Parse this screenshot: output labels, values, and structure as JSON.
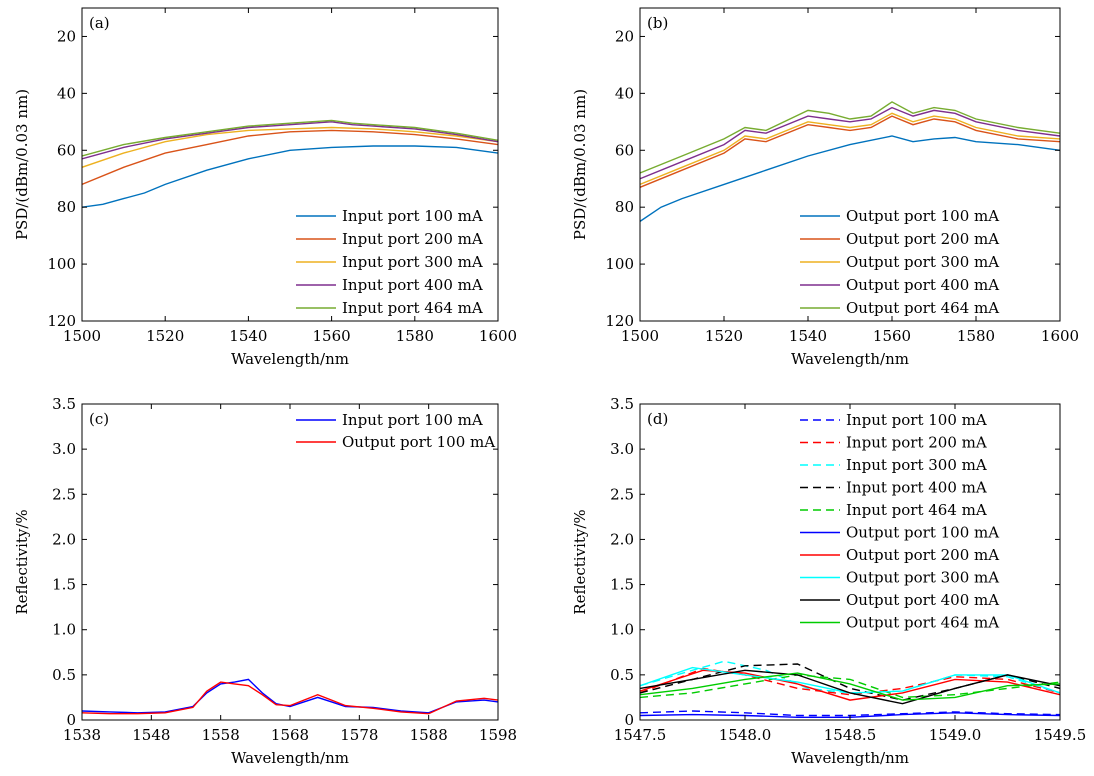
{
  "chart_data": [
    {
      "id": "a",
      "type": "line",
      "panel_label": "(a)",
      "xlabel": "Wavelength/nm",
      "ylabel": "PSD/(dBm/0.03 nm)",
      "xlim": [
        1500,
        1600
      ],
      "ylim": [
        120,
        10
      ],
      "y_inverted": true,
      "xticks": [
        1500,
        1520,
        1540,
        1560,
        1580,
        1600
      ],
      "yticks": [
        20,
        40,
        60,
        80,
        100,
        120
      ],
      "legend_position": "lower-right",
      "grid": false,
      "series": [
        {
          "name": "Input port 100 mA",
          "color": "#0072BD",
          "dash": "solid",
          "x": [
            1500,
            1505,
            1510,
            1515,
            1520,
            1530,
            1540,
            1550,
            1560,
            1570,
            1580,
            1590,
            1600
          ],
          "y": [
            80,
            79,
            77,
            75,
            72,
            67,
            63,
            60,
            59,
            58.5,
            58.5,
            59,
            61
          ]
        },
        {
          "name": "Input port 200 mA",
          "color": "#D95319",
          "dash": "solid",
          "x": [
            1500,
            1510,
            1520,
            1530,
            1540,
            1550,
            1560,
            1570,
            1580,
            1590,
            1600
          ],
          "y": [
            72,
            66,
            61,
            58,
            55,
            53.5,
            53,
            53.5,
            54.5,
            56,
            58
          ]
        },
        {
          "name": "Input port 300 mA",
          "color": "#EDB120",
          "dash": "solid",
          "x": [
            1500,
            1510,
            1520,
            1530,
            1540,
            1550,
            1560,
            1570,
            1580,
            1590,
            1600
          ],
          "y": [
            66,
            61,
            57,
            54.5,
            53,
            52.5,
            52,
            52.5,
            53.5,
            55,
            57
          ]
        },
        {
          "name": "Input port 400 mA",
          "color": "#7E2F8E",
          "dash": "solid",
          "x": [
            1500,
            1510,
            1520,
            1530,
            1540,
            1550,
            1560,
            1565,
            1570,
            1580,
            1590,
            1600
          ],
          "y": [
            63,
            59,
            56,
            54,
            52,
            51,
            50,
            51,
            51.5,
            52.5,
            54.5,
            57
          ]
        },
        {
          "name": "Input port 464 mA",
          "color": "#77AC30",
          "dash": "solid",
          "x": [
            1500,
            1510,
            1520,
            1530,
            1540,
            1550,
            1560,
            1565,
            1570,
            1580,
            1590,
            1600
          ],
          "y": [
            62,
            58,
            55.5,
            53.5,
            51.5,
            50.5,
            49.5,
            50.5,
            51,
            52,
            54,
            56.5
          ]
        }
      ]
    },
    {
      "id": "b",
      "type": "line",
      "panel_label": "(b)",
      "xlabel": "Wavelength/nm",
      "ylabel": "PSD/(dBm/0.03 nm)",
      "xlim": [
        1500,
        1600
      ],
      "ylim": [
        120,
        10
      ],
      "y_inverted": true,
      "xticks": [
        1500,
        1520,
        1540,
        1560,
        1580,
        1600
      ],
      "yticks": [
        20,
        40,
        60,
        80,
        100,
        120
      ],
      "legend_position": "lower-right",
      "grid": false,
      "series": [
        {
          "name": "Output port 100 mA",
          "color": "#0072BD",
          "dash": "solid",
          "x": [
            1500,
            1505,
            1510,
            1520,
            1530,
            1540,
            1550,
            1560,
            1565,
            1570,
            1575,
            1580,
            1590,
            1600
          ],
          "y": [
            85,
            80,
            77,
            72,
            67,
            62,
            58,
            55,
            57,
            56,
            55.5,
            57,
            58,
            60
          ]
        },
        {
          "name": "Output port 200 mA",
          "color": "#D95319",
          "dash": "solid",
          "x": [
            1500,
            1510,
            1520,
            1525,
            1530,
            1540,
            1545,
            1550,
            1555,
            1560,
            1565,
            1570,
            1575,
            1580,
            1590,
            1600
          ],
          "y": [
            73,
            67,
            61,
            56,
            57,
            51,
            52,
            53,
            52,
            48,
            51,
            49,
            50,
            53,
            56,
            57
          ]
        },
        {
          "name": "Output port 300 mA",
          "color": "#EDB120",
          "dash": "solid",
          "x": [
            1500,
            1510,
            1520,
            1525,
            1530,
            1540,
            1545,
            1550,
            1555,
            1560,
            1565,
            1570,
            1575,
            1580,
            1590,
            1600
          ],
          "y": [
            72,
            66,
            60,
            55,
            56,
            50,
            51,
            52,
            51,
            47,
            50,
            48,
            49,
            52,
            55,
            56
          ]
        },
        {
          "name": "Output port 400 mA",
          "color": "#7E2F8E",
          "dash": "solid",
          "x": [
            1500,
            1510,
            1520,
            1525,
            1530,
            1540,
            1545,
            1550,
            1555,
            1560,
            1565,
            1570,
            1575,
            1580,
            1590,
            1600
          ],
          "y": [
            70,
            64,
            58,
            53,
            54,
            48,
            49,
            50,
            49,
            45,
            48,
            46,
            47,
            50,
            53,
            55
          ]
        },
        {
          "name": "Output port 464 mA",
          "color": "#77AC30",
          "dash": "solid",
          "x": [
            1500,
            1510,
            1520,
            1525,
            1530,
            1540,
            1545,
            1550,
            1555,
            1560,
            1565,
            1570,
            1575,
            1580,
            1590,
            1600
          ],
          "y": [
            68,
            62,
            56,
            52,
            53,
            46,
            47,
            49,
            48,
            43,
            47,
            45,
            46,
            49,
            52,
            54
          ]
        }
      ]
    },
    {
      "id": "c",
      "type": "line",
      "panel_label": "(c)",
      "xlabel": "Wavelength/nm",
      "ylabel": "Reflectivity/%",
      "xlim": [
        1538,
        1598
      ],
      "ylim": [
        0,
        3.5
      ],
      "xticks": [
        1538,
        1548,
        1558,
        1568,
        1578,
        1588,
        1598
      ],
      "yticks": [
        "0",
        "0.5",
        "1.0",
        "1.5",
        "2.0",
        "2.5",
        "3.0",
        "3.5"
      ],
      "legend_position": "top-right",
      "grid": false,
      "series": [
        {
          "name": "Input port 100 mA",
          "color": "#0000FF",
          "dash": "solid",
          "x": [
            1538,
            1542,
            1546,
            1550,
            1554,
            1556,
            1558,
            1560,
            1562,
            1564,
            1566,
            1568,
            1570,
            1572,
            1574,
            1576,
            1580,
            1584,
            1588,
            1592,
            1596,
            1598
          ],
          "y": [
            0.1,
            0.09,
            0.08,
            0.09,
            0.15,
            0.3,
            0.4,
            0.42,
            0.45,
            0.3,
            0.18,
            0.15,
            0.2,
            0.25,
            0.2,
            0.15,
            0.14,
            0.1,
            0.08,
            0.2,
            0.22,
            0.2
          ]
        },
        {
          "name": "Output port 100 mA",
          "color": "#FF0000",
          "dash": "solid",
          "x": [
            1538,
            1542,
            1546,
            1550,
            1554,
            1556,
            1558,
            1560,
            1562,
            1564,
            1566,
            1568,
            1570,
            1572,
            1574,
            1576,
            1580,
            1584,
            1588,
            1592,
            1596,
            1598
          ],
          "y": [
            0.08,
            0.07,
            0.07,
            0.08,
            0.14,
            0.32,
            0.42,
            0.4,
            0.38,
            0.28,
            0.17,
            0.16,
            0.22,
            0.28,
            0.22,
            0.16,
            0.13,
            0.09,
            0.07,
            0.21,
            0.24,
            0.22
          ]
        }
      ]
    },
    {
      "id": "d",
      "type": "line",
      "panel_label": "(d)",
      "xlabel": "Wavelength/nm",
      "ylabel": "Reflectivity/%",
      "xlim": [
        1547.5,
        1549.5
      ],
      "ylim": [
        0,
        3.5
      ],
      "xticks": [
        "1547.5",
        "1548.0",
        "1548.5",
        "1549.0",
        "1549.5"
      ],
      "yticks": [
        "0",
        "0.5",
        "1.0",
        "1.5",
        "2.0",
        "2.5",
        "3.0",
        "3.5"
      ],
      "legend_position": "top-right",
      "grid": false,
      "series": [
        {
          "name": "Input port 100 mA",
          "color": "#0000FF",
          "dash": "dashed",
          "x": [
            1547.5,
            1547.75,
            1548.0,
            1548.25,
            1548.5,
            1548.75,
            1549.0,
            1549.25,
            1549.5
          ],
          "y": [
            0.08,
            0.1,
            0.08,
            0.05,
            0.05,
            0.07,
            0.09,
            0.07,
            0.06
          ]
        },
        {
          "name": "Input port 200 mA",
          "color": "#FF0000",
          "dash": "dashed",
          "x": [
            1547.5,
            1547.8,
            1548.0,
            1548.25,
            1548.5,
            1548.75,
            1549.0,
            1549.25,
            1549.5
          ],
          "y": [
            0.3,
            0.57,
            0.5,
            0.35,
            0.28,
            0.35,
            0.48,
            0.45,
            0.3
          ]
        },
        {
          "name": "Input port 300 mA",
          "color": "#00FFFF",
          "dash": "dashed",
          "x": [
            1547.5,
            1547.75,
            1547.9,
            1548.1,
            1548.3,
            1548.5,
            1548.75,
            1549.0,
            1549.25,
            1549.5
          ],
          "y": [
            0.38,
            0.55,
            0.65,
            0.55,
            0.35,
            0.3,
            0.32,
            0.5,
            0.48,
            0.3
          ]
        },
        {
          "name": "Input port 400 mA",
          "color": "#000000",
          "dash": "dashed",
          "x": [
            1547.5,
            1547.75,
            1548.0,
            1548.25,
            1548.5,
            1548.75,
            1549.0,
            1549.25,
            1549.5
          ],
          "y": [
            0.3,
            0.45,
            0.6,
            0.62,
            0.35,
            0.22,
            0.35,
            0.5,
            0.35
          ]
        },
        {
          "name": "Input port 464 mA",
          "color": "#00CC00",
          "dash": "dashed",
          "x": [
            1547.5,
            1547.75,
            1548.0,
            1548.25,
            1548.5,
            1548.75,
            1549.0,
            1549.25,
            1549.5
          ],
          "y": [
            0.25,
            0.3,
            0.4,
            0.5,
            0.45,
            0.25,
            0.28,
            0.35,
            0.42
          ]
        },
        {
          "name": "Output port 100 mA",
          "color": "#0000FF",
          "dash": "solid",
          "x": [
            1547.5,
            1547.75,
            1548.0,
            1548.25,
            1548.5,
            1548.75,
            1549.0,
            1549.25,
            1549.5
          ],
          "y": [
            0.05,
            0.06,
            0.05,
            0.03,
            0.03,
            0.06,
            0.08,
            0.06,
            0.05
          ]
        },
        {
          "name": "Output port 200 mA",
          "color": "#FF0000",
          "dash": "solid",
          "x": [
            1547.5,
            1547.8,
            1548.0,
            1548.25,
            1548.5,
            1548.75,
            1549.0,
            1549.25,
            1549.5
          ],
          "y": [
            0.32,
            0.55,
            0.52,
            0.4,
            0.22,
            0.3,
            0.45,
            0.42,
            0.28
          ]
        },
        {
          "name": "Output port 300 mA",
          "color": "#00FFFF",
          "dash": "solid",
          "x": [
            1547.5,
            1547.75,
            1548.0,
            1548.25,
            1548.5,
            1548.75,
            1549.0,
            1549.25,
            1549.5
          ],
          "y": [
            0.38,
            0.58,
            0.5,
            0.42,
            0.3,
            0.32,
            0.5,
            0.5,
            0.3
          ]
        },
        {
          "name": "Output port 400 mA",
          "color": "#000000",
          "dash": "solid",
          "x": [
            1547.5,
            1547.75,
            1548.0,
            1548.25,
            1548.5,
            1548.75,
            1549.0,
            1549.25,
            1549.5
          ],
          "y": [
            0.35,
            0.45,
            0.55,
            0.5,
            0.3,
            0.18,
            0.35,
            0.5,
            0.38
          ]
        },
        {
          "name": "Output port 464 mA",
          "color": "#00CC00",
          "dash": "solid",
          "x": [
            1547.5,
            1547.75,
            1548.0,
            1548.25,
            1548.5,
            1548.75,
            1549.0,
            1549.25,
            1549.5
          ],
          "y": [
            0.28,
            0.35,
            0.45,
            0.52,
            0.4,
            0.22,
            0.25,
            0.38,
            0.4
          ]
        }
      ]
    }
  ]
}
